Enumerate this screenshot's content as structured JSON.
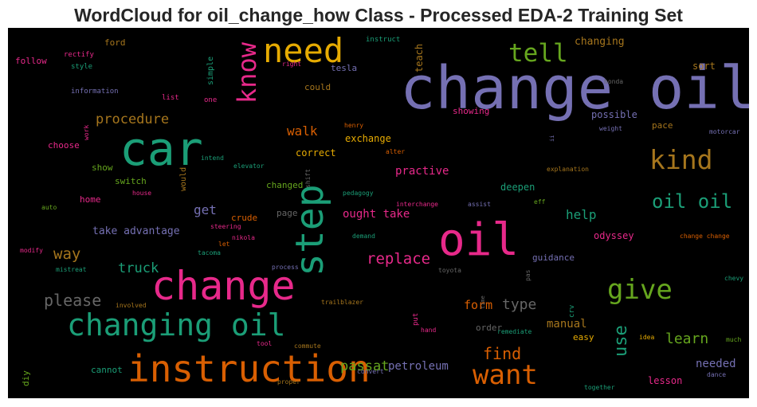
{
  "chart_data": {
    "type": "wordcloud",
    "title": "WordCloud for oil_change_how Class - Processed EDA-2 Training Set",
    "background": "#000000",
    "palette": "Dark2",
    "words": [
      {
        "text": "change oil",
        "weight": 100,
        "color": "#7570b3"
      },
      {
        "text": "oil",
        "weight": 82,
        "color": "#e7298a"
      },
      {
        "text": "car",
        "weight": 80,
        "color": "#1b9e77"
      },
      {
        "text": "change",
        "weight": 70,
        "color": "#e7298a"
      },
      {
        "text": "instruction",
        "weight": 66,
        "color": "#d95f02"
      },
      {
        "text": "step",
        "weight": 64,
        "color": "#1b9e77"
      },
      {
        "text": "need",
        "weight": 56,
        "color": "#e6ab02"
      },
      {
        "text": "changing oil",
        "weight": 50,
        "color": "#1b9e77"
      },
      {
        "text": "want",
        "weight": 44,
        "color": "#d95f02"
      },
      {
        "text": "know",
        "weight": 42,
        "color": "#e7298a"
      },
      {
        "text": "kind",
        "weight": 40,
        "color": "#a6761d"
      },
      {
        "text": "give",
        "weight": 40,
        "color": "#66a61e"
      },
      {
        "text": "tell",
        "weight": 38,
        "color": "#66a61e"
      },
      {
        "text": "oil oil",
        "weight": 30,
        "color": "#1b9e77"
      },
      {
        "text": "use",
        "weight": 28,
        "color": "#1b9e77"
      },
      {
        "text": "please",
        "weight": 26,
        "color": "#666666"
      },
      {
        "text": "replace",
        "weight": 24,
        "color": "#e7298a"
      },
      {
        "text": "find",
        "weight": 24,
        "color": "#d95f02"
      },
      {
        "text": "way",
        "weight": 22,
        "color": "#a6761d"
      },
      {
        "text": "learn",
        "weight": 22,
        "color": "#66a61e"
      },
      {
        "text": "type",
        "weight": 20,
        "color": "#666666"
      },
      {
        "text": "passat",
        "weight": 20,
        "color": "#66a61e"
      },
      {
        "text": "procedure",
        "weight": 19,
        "color": "#a6761d"
      },
      {
        "text": "truck",
        "weight": 19,
        "color": "#1b9e77"
      },
      {
        "text": "walk",
        "weight": 18,
        "color": "#d95f02"
      },
      {
        "text": "help",
        "weight": 18,
        "color": "#1b9e77"
      },
      {
        "text": "get",
        "weight": 17,
        "color": "#7570b3"
      },
      {
        "text": "form",
        "weight": 17,
        "color": "#d95f02"
      },
      {
        "text": "manual",
        "weight": 16,
        "color": "#a6761d"
      },
      {
        "text": "needed",
        "weight": 16,
        "color": "#7570b3"
      },
      {
        "text": "ought take",
        "weight": 15,
        "color": "#e7298a"
      },
      {
        "text": "practive",
        "weight": 15,
        "color": "#e7298a"
      },
      {
        "text": "take advantage",
        "weight": 15,
        "color": "#7570b3"
      },
      {
        "text": "petroleum",
        "weight": 15,
        "color": "#7570b3"
      },
      {
        "text": "changing",
        "weight": 14,
        "color": "#a6761d"
      },
      {
        "text": "possible",
        "weight": 12,
        "color": "#7570b3"
      },
      {
        "text": "lesson",
        "weight": 12,
        "color": "#e7298a"
      },
      {
        "text": "teach",
        "weight": 12,
        "color": "#a6761d"
      },
      {
        "text": "exchange",
        "weight": 12,
        "color": "#e6ab02"
      },
      {
        "text": "correct",
        "weight": 12,
        "color": "#e6ab02"
      },
      {
        "text": "sort",
        "weight": 12,
        "color": "#a6761d"
      },
      {
        "text": "pace",
        "weight": 12,
        "color": "#a6761d"
      },
      {
        "text": "deepen",
        "weight": 12,
        "color": "#1b9e77"
      },
      {
        "text": "odyssey",
        "weight": 12,
        "color": "#e7298a"
      },
      {
        "text": "guidance",
        "weight": 12,
        "color": "#7570b3"
      },
      {
        "text": "easy",
        "weight": 12,
        "color": "#e6ab02"
      },
      {
        "text": "order",
        "weight": 12,
        "color": "#666666"
      },
      {
        "text": "crude",
        "weight": 12,
        "color": "#d95f02"
      },
      {
        "text": "cannot",
        "weight": 11,
        "color": "#1b9e77"
      },
      {
        "text": "choose",
        "weight": 11,
        "color": "#e7298a"
      },
      {
        "text": "switch",
        "weight": 11,
        "color": "#66a61e"
      },
      {
        "text": "could",
        "weight": 11,
        "color": "#a6761d"
      },
      {
        "text": "showing",
        "weight": 11,
        "color": "#e7298a"
      },
      {
        "text": "home",
        "weight": 11,
        "color": "#e7298a"
      },
      {
        "text": "show",
        "weight": 11,
        "color": "#66a61e"
      },
      {
        "text": "changed",
        "weight": 11,
        "color": "#66a61e"
      },
      {
        "text": "tesla",
        "weight": 11,
        "color": "#7570b3"
      },
      {
        "text": "ford",
        "weight": 11,
        "color": "#a6761d"
      },
      {
        "text": "follow",
        "weight": 11,
        "color": "#e7298a"
      },
      {
        "text": "page",
        "weight": 11,
        "color": "#666666"
      },
      {
        "text": "simple",
        "weight": 10,
        "color": "#1b9e77"
      },
      {
        "text": "would",
        "weight": 10,
        "color": "#a6761d"
      },
      {
        "text": "diy",
        "weight": 10,
        "color": "#66a61e"
      },
      {
        "text": "crv",
        "weight": 9,
        "color": "#1b9e77"
      },
      {
        "text": "put",
        "weight": 9,
        "color": "#e7298a"
      },
      {
        "text": "instruct",
        "weight": 9,
        "color": "#1b9e77"
      },
      {
        "text": "style",
        "weight": 9,
        "color": "#1b9e77"
      },
      {
        "text": "rectify",
        "weight": 9,
        "color": "#e7298a"
      },
      {
        "text": "information",
        "weight": 9,
        "color": "#7570b3"
      },
      {
        "text": "list",
        "weight": 9,
        "color": "#e7298a"
      },
      {
        "text": "one",
        "weight": 9,
        "color": "#e7298a"
      },
      {
        "text": "right",
        "weight": 8,
        "color": "#e7298a"
      },
      {
        "text": "honda",
        "weight": 8,
        "color": "#666666"
      },
      {
        "text": "henry",
        "weight": 8,
        "color": "#d95f02"
      },
      {
        "text": "weight",
        "weight": 8,
        "color": "#7570b3"
      },
      {
        "text": "motorcar",
        "weight": 8,
        "color": "#7570b3"
      },
      {
        "text": "work",
        "weight": 8,
        "color": "#e7298a"
      },
      {
        "text": "intend",
        "weight": 8,
        "color": "#1b9e77"
      },
      {
        "text": "elevator",
        "weight": 8,
        "color": "#1b9e77"
      },
      {
        "text": "alter",
        "weight": 8,
        "color": "#d95f02"
      },
      {
        "text": "ii",
        "weight": 8,
        "color": "#7570b3"
      },
      {
        "text": "explanation",
        "weight": 8,
        "color": "#a6761d"
      },
      {
        "text": "house",
        "weight": 8,
        "color": "#e7298a"
      },
      {
        "text": "shift",
        "weight": 8,
        "color": "#666666"
      },
      {
        "text": "pedagogy",
        "weight": 8,
        "color": "#1b9e77"
      },
      {
        "text": "auto",
        "weight": 8,
        "color": "#66a61e"
      },
      {
        "text": "steering",
        "weight": 8,
        "color": "#e7298a"
      },
      {
        "text": "interchange",
        "weight": 8,
        "color": "#e7298a"
      },
      {
        "text": "assist",
        "weight": 8,
        "color": "#7570b3"
      },
      {
        "text": "eff",
        "weight": 8,
        "color": "#66a61e"
      },
      {
        "text": "nikola",
        "weight": 8,
        "color": "#e7298a"
      },
      {
        "text": "demand",
        "weight": 8,
        "color": "#1b9e77"
      },
      {
        "text": "change change",
        "weight": 8,
        "color": "#d95f02"
      },
      {
        "text": "modify",
        "weight": 8,
        "color": "#e7298a"
      },
      {
        "text": "let",
        "weight": 8,
        "color": "#d95f02"
      },
      {
        "text": "tacoma",
        "weight": 8,
        "color": "#1b9e77"
      },
      {
        "text": "mistreat",
        "weight": 8,
        "color": "#1b9e77"
      },
      {
        "text": "process",
        "weight": 8,
        "color": "#7570b3"
      },
      {
        "text": "toyota",
        "weight": 8,
        "color": "#666666"
      },
      {
        "text": "chevy",
        "weight": 8,
        "color": "#1b9e77"
      },
      {
        "text": "pas",
        "weight": 8,
        "color": "#666666"
      },
      {
        "text": "involved",
        "weight": 8,
        "color": "#a6761d"
      },
      {
        "text": "trailblazer",
        "weight": 8,
        "color": "#a6761d"
      },
      {
        "text": "time",
        "weight": 7,
        "color": "#666666"
      },
      {
        "text": "hand",
        "weight": 8,
        "color": "#e7298a"
      },
      {
        "text": "remediate",
        "weight": 8,
        "color": "#1b9e77"
      },
      {
        "text": "idea",
        "weight": 8,
        "color": "#e6ab02"
      },
      {
        "text": "much",
        "weight": 8,
        "color": "#66a61e"
      },
      {
        "text": "tool",
        "weight": 8,
        "color": "#e7298a"
      },
      {
        "text": "commute",
        "weight": 8,
        "color": "#a6761d"
      },
      {
        "text": "convert",
        "weight": 8,
        "color": "#7570b3"
      },
      {
        "text": "proper",
        "weight": 8,
        "color": "#a6761d"
      },
      {
        "text": "together",
        "weight": 8,
        "color": "#1b9e77"
      },
      {
        "text": "dance",
        "weight": 8,
        "color": "#7570b3"
      }
    ]
  }
}
